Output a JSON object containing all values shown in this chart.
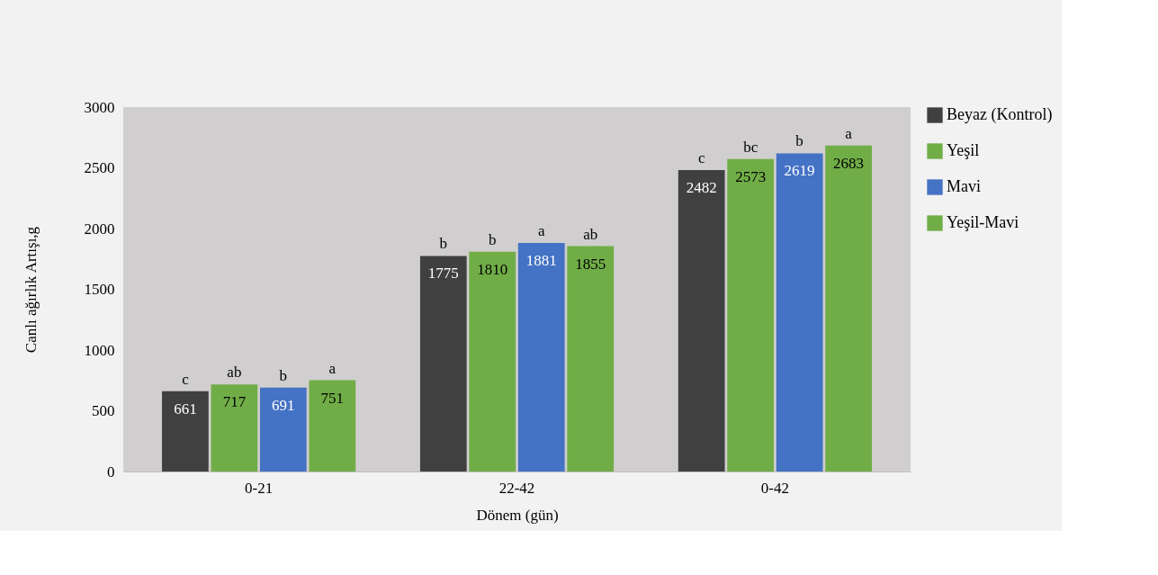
{
  "chart_data": {
    "type": "bar",
    "xlabel": "Dönem (gün)",
    "ylabel": "Canlı ağırlık Artışı,g",
    "categories": [
      "0-21",
      "22-42",
      "0-42"
    ],
    "series": [
      {
        "name": "Beyaz (Kontrol)",
        "color": "#404040",
        "values": [
          661,
          1775,
          2482
        ]
      },
      {
        "name": "Yeşil",
        "color": "#70ad47",
        "values": [
          717,
          1810,
          2573
        ]
      },
      {
        "name": "Mavi",
        "color": "#4472c4",
        "values": [
          691,
          1881,
          2619
        ]
      },
      {
        "name": "Yeşil-Mavi",
        "color": "#70ad47",
        "values": [
          751,
          1855,
          2683
        ]
      }
    ],
    "ylim": [
      0,
      3000
    ],
    "yticks": [
      0,
      500,
      1000,
      1500,
      2000,
      2500,
      3000
    ],
    "grid": false,
    "legend": "right",
    "data_labels": true,
    "annotations": [
      "c",
      "ab",
      "b",
      "a",
      "b",
      "b",
      "a",
      "ab",
      "c",
      "bc",
      "b",
      "a"
    ]
  }
}
